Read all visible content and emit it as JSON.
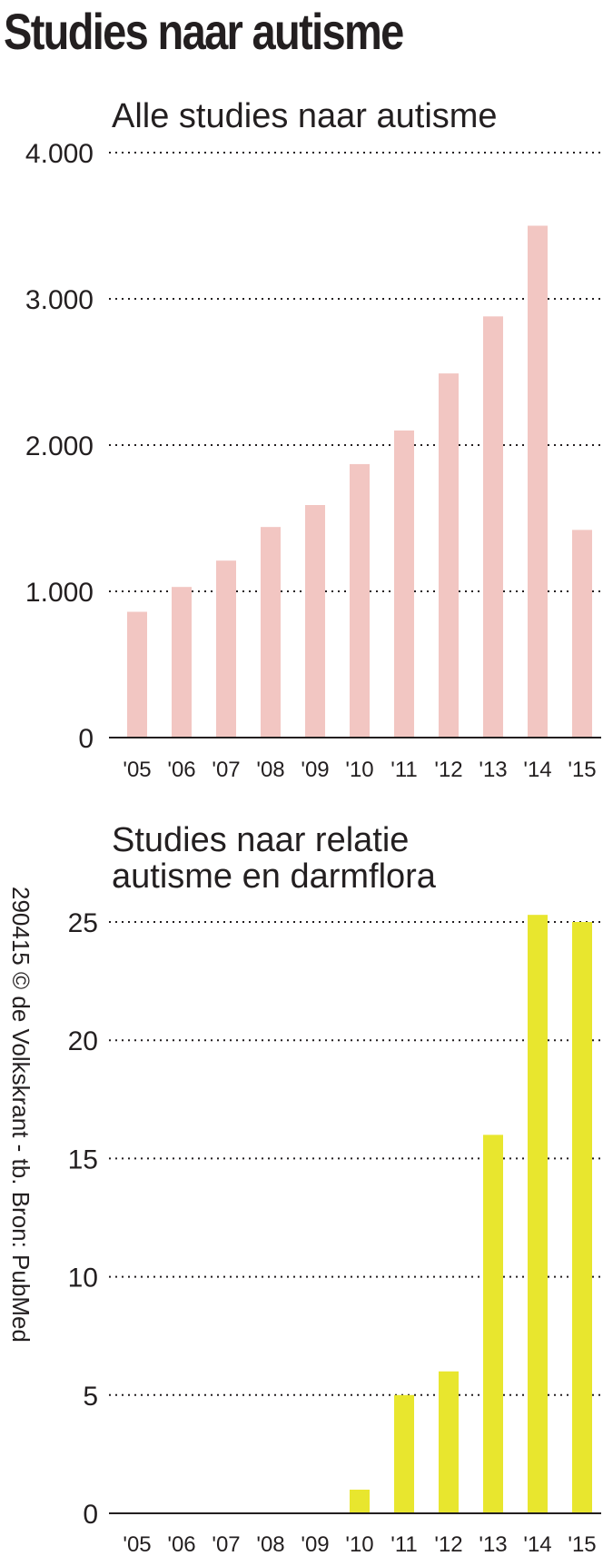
{
  "header": {
    "title": "Studies naar autisme"
  },
  "credit": "290415 © de Volkskrant - tb. Bron: PubMed",
  "chart_data": [
    {
      "type": "bar",
      "title": "Alle studies naar autisme",
      "categories": [
        "'05",
        "'06",
        "'07",
        "'08",
        "'09",
        "'10",
        "'11",
        "'12",
        "'13",
        "'14",
        "'15"
      ],
      "values": [
        860,
        1030,
        1210,
        1440,
        1590,
        1870,
        2100,
        2490,
        2880,
        3500,
        1420
      ],
      "ylim": [
        0,
        4000
      ],
      "yticks": [
        0,
        1000,
        2000,
        3000,
        4000
      ],
      "ytick_labels": [
        "0",
        "1.000",
        "2.000",
        "3.000",
        "4.000"
      ],
      "color": "#f2c6c2",
      "grid": true,
      "xlabel": "",
      "ylabel": ""
    },
    {
      "type": "bar",
      "title": "Studies naar relatie\nautisme en darmflora",
      "categories": [
        "'05",
        "'06",
        "'07",
        "'08",
        "'09",
        "'10",
        "'11",
        "'12",
        "'13",
        "'14",
        "'15"
      ],
      "values": [
        0,
        0,
        0,
        0,
        0,
        1,
        5,
        6,
        16,
        25.3,
        25
      ],
      "ylim": [
        0,
        25
      ],
      "yticks": [
        0,
        5,
        10,
        15,
        20,
        25
      ],
      "ytick_labels": [
        "0",
        "5",
        "10",
        "15",
        "20",
        "25"
      ],
      "color": "#e8e62e",
      "grid": true,
      "xlabel": "",
      "ylabel": ""
    }
  ]
}
